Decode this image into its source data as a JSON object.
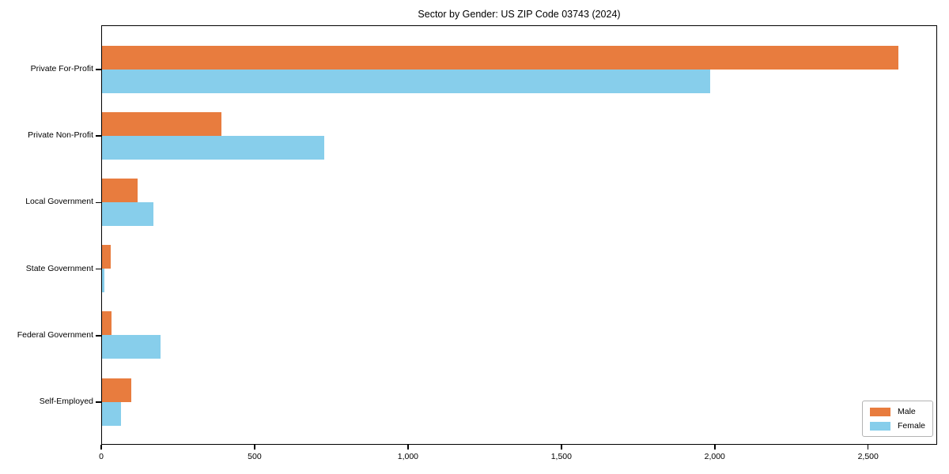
{
  "title": "Sector by Gender: US ZIP Code 03743 (2024)",
  "colors": {
    "male": "#e87c3e",
    "female": "#87ceeb",
    "axis": "#000000",
    "background": "#ffffff",
    "legend_border": "#b3b3b3"
  },
  "legend": {
    "position": "lower right",
    "items": [
      {
        "label": "Male",
        "color": "#e87c3e"
      },
      {
        "label": "Female",
        "color": "#87ceeb"
      }
    ]
  },
  "chart_data": {
    "type": "bar",
    "orientation": "horizontal",
    "title": "Sector by Gender: US ZIP Code 03743 (2024)",
    "categories": [
      "Private For-Profit",
      "Private Non-Profit",
      "Local Government",
      "State Government",
      "Federal Government",
      "Self-Employed"
    ],
    "series": [
      {
        "name": "Male",
        "color": "#e87c3e",
        "values": [
          2600,
          390,
          115,
          28,
          30,
          95
        ]
      },
      {
        "name": "Female",
        "color": "#87ceeb",
        "values": [
          1985,
          725,
          168,
          8,
          190,
          62
        ]
      }
    ],
    "xlabel": "",
    "ylabel": "",
    "xlim": [
      0,
      2725
    ],
    "xticks": [
      0,
      500,
      1000,
      1500,
      2000,
      2500
    ],
    "xtick_labels": [
      "0",
      "500",
      "1,000",
      "1,500",
      "2,000",
      "2,500"
    ],
    "grid": false,
    "legend_position": "lower right"
  }
}
